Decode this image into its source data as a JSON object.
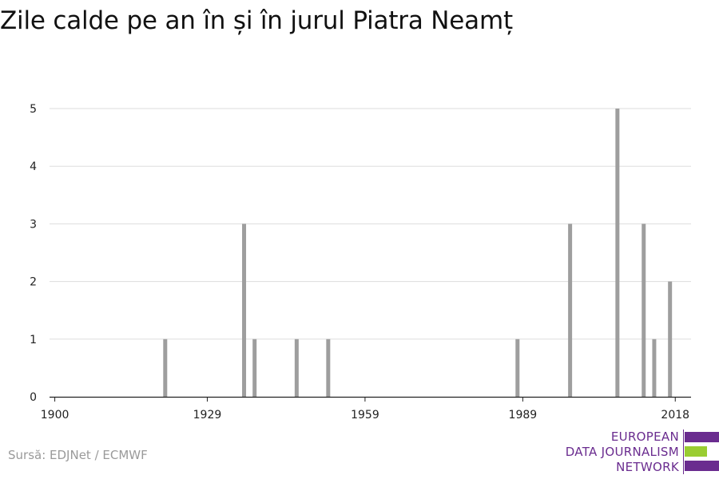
{
  "title": "Zile calde pe an în și în jurul Piatra Neamț",
  "source": "Sursă: EDJNet / ECMWF",
  "logo": {
    "lines": [
      "EUROPEAN",
      "DATA JOURNALISM",
      "NETWORK"
    ],
    "colors": {
      "purple": "#6a2c8f",
      "green": "#9acd32"
    }
  },
  "chart_data": {
    "type": "bar",
    "x_tick_labels": [
      "1900",
      "1929",
      "1959",
      "1989",
      "2018"
    ],
    "y_tick_labels": [
      "0",
      "1",
      "2",
      "3",
      "4",
      "5"
    ],
    "xlim": [
      1899,
      2021
    ],
    "ylim": [
      0,
      5
    ],
    "grid": true,
    "bar_color": "#9e9e9e",
    "x": [
      1921,
      1936,
      1938,
      1946,
      1952,
      1988,
      1998,
      2007,
      2012,
      2014,
      2017
    ],
    "values": [
      1,
      3,
      1,
      1,
      1,
      1,
      3,
      5,
      3,
      1,
      2
    ],
    "xlabel": "",
    "ylabel": ""
  }
}
